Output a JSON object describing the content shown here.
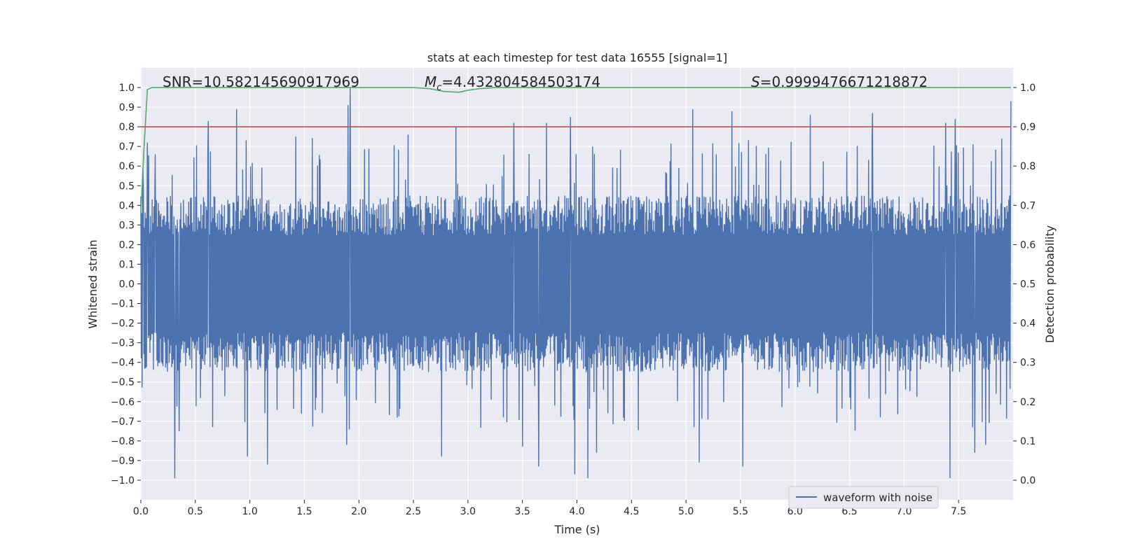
{
  "chart_data": {
    "type": "line",
    "title": "stats at each timestep for test data 16555 [signal=1]",
    "xlabel": "Time (s)",
    "ylabel": "Whitened strain",
    "y2label": "Detection probability",
    "xlim": [
      0.0,
      8.0
    ],
    "ylim": [
      -1.1,
      1.1
    ],
    "y2lim": [
      -0.05,
      1.05
    ],
    "xticks": [
      "0.0",
      "0.5",
      "1.0",
      "1.5",
      "2.0",
      "2.5",
      "3.0",
      "3.5",
      "4.0",
      "4.5",
      "5.0",
      "5.5",
      "6.0",
      "6.5",
      "7.0",
      "7.5"
    ],
    "yticks": [
      "1.0",
      "0.9",
      "0.8",
      "0.7",
      "0.6",
      "0.5",
      "0.4",
      "0.3",
      "0.2",
      "0.1",
      "0.0",
      "−0.1",
      "−0.2",
      "−0.3",
      "−0.4",
      "−0.5",
      "−0.6",
      "−0.7",
      "−0.8",
      "−0.9",
      "−1.0"
    ],
    "y2ticks": [
      "1.0",
      "0.9",
      "0.8",
      "0.7",
      "0.6",
      "0.5",
      "0.4",
      "0.3",
      "0.2",
      "0.1",
      "0.0"
    ],
    "annotations": {
      "snr": "SNR=10.582145690917969",
      "mc_symbol": "M",
      "mc_sub": "c",
      "mc_value": "=4.432804584503174",
      "s_symbol": "S",
      "s_value": "=0.9999476671218872"
    },
    "legend": {
      "label": "waveform with noise",
      "location": "lower-right"
    },
    "series": [
      {
        "name": "waveform with noise",
        "axis": "left",
        "color": "#4c72b0",
        "samples": 2000,
        "typical_envelope": 0.45,
        "peaks": [
          {
            "x": 0.02,
            "y": 0.59
          },
          {
            "x": 0.06,
            "y": 0.72
          },
          {
            "x": 0.13,
            "y": 0.66
          },
          {
            "x": 0.31,
            "y": 0.64
          },
          {
            "x": 0.62,
            "y": 0.83
          },
          {
            "x": 0.88,
            "y": 0.89
          },
          {
            "x": 1.42,
            "y": 0.75
          },
          {
            "x": 1.9,
            "y": 0.91
          },
          {
            "x": 1.92,
            "y": 1.0
          },
          {
            "x": 2.45,
            "y": 0.76
          },
          {
            "x": 2.89,
            "y": 0.8
          },
          {
            "x": 3.42,
            "y": 0.82
          },
          {
            "x": 3.72,
            "y": 0.82
          },
          {
            "x": 3.94,
            "y": 0.85
          },
          {
            "x": 5.06,
            "y": 0.89
          },
          {
            "x": 5.42,
            "y": 0.88
          },
          {
            "x": 6.14,
            "y": 0.86
          },
          {
            "x": 6.71,
            "y": 0.87
          },
          {
            "x": 7.38,
            "y": 0.82
          },
          {
            "x": 7.47,
            "y": 0.84
          },
          {
            "x": 7.98,
            "y": 0.93
          },
          {
            "x": 0.31,
            "y": -0.99
          },
          {
            "x": 0.35,
            "y": -0.75
          },
          {
            "x": 0.98,
            "y": -0.88
          },
          {
            "x": 1.16,
            "y": -0.92
          },
          {
            "x": 1.89,
            "y": -0.82
          },
          {
            "x": 2.76,
            "y": -0.88
          },
          {
            "x": 3.5,
            "y": -0.83
          },
          {
            "x": 3.65,
            "y": -0.93
          },
          {
            "x": 3.98,
            "y": -0.97
          },
          {
            "x": 4.1,
            "y": -0.99
          },
          {
            "x": 4.18,
            "y": -0.86
          },
          {
            "x": 5.12,
            "y": -0.91
          },
          {
            "x": 5.52,
            "y": -0.93
          },
          {
            "x": 7.42,
            "y": -0.99
          },
          {
            "x": 7.65,
            "y": -0.86
          },
          {
            "x": 7.75,
            "y": -0.82
          }
        ]
      },
      {
        "name": "detection probability",
        "axis": "right",
        "color": "#55a868",
        "points": [
          [
            0.0,
            0.68
          ],
          [
            0.03,
            0.85
          ],
          [
            0.06,
            0.995
          ],
          [
            0.1,
            1.0
          ],
          [
            0.14,
            1.0
          ],
          [
            1.0,
            1.0
          ],
          [
            2.0,
            1.0
          ],
          [
            2.5,
            1.0
          ],
          [
            2.65,
            0.997
          ],
          [
            2.78,
            0.99
          ],
          [
            2.92,
            0.988
          ],
          [
            3.0,
            0.993
          ],
          [
            3.1,
            0.997
          ],
          [
            3.25,
            1.0
          ],
          [
            4.0,
            1.0
          ],
          [
            5.0,
            1.0
          ],
          [
            6.0,
            1.0
          ],
          [
            7.0,
            1.0
          ],
          [
            7.98,
            1.0
          ]
        ]
      },
      {
        "name": "threshold",
        "axis": "right",
        "color": "#c44e52",
        "points": [
          [
            0.0,
            0.9
          ],
          [
            7.98,
            0.9
          ]
        ]
      }
    ]
  }
}
